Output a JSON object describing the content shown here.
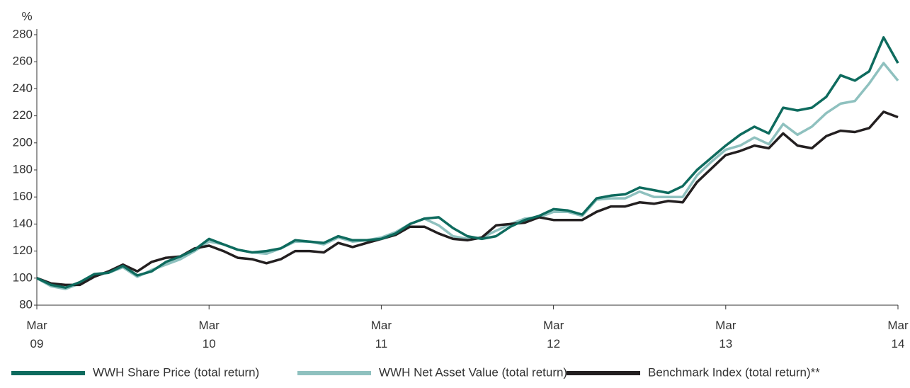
{
  "chart_data": {
    "type": "line",
    "ylabel": "%",
    "categories": [
      "Mar 09",
      null,
      null,
      null,
      null,
      null,
      null,
      null,
      null,
      null,
      null,
      null,
      "Mar 10",
      null,
      null,
      null,
      null,
      null,
      null,
      null,
      null,
      null,
      null,
      null,
      "Mar 11",
      null,
      null,
      null,
      null,
      null,
      null,
      null,
      null,
      null,
      null,
      null,
      "Mar 12",
      null,
      null,
      null,
      null,
      null,
      null,
      null,
      null,
      null,
      null,
      null,
      "Mar 13",
      null,
      null,
      null,
      null,
      null,
      null,
      null,
      null,
      null,
      null,
      null,
      "Mar 14"
    ],
    "ylim": [
      80,
      280
    ],
    "yticks": [
      80,
      100,
      120,
      140,
      160,
      180,
      200,
      220,
      240,
      260,
      280
    ],
    "grid": false,
    "legend": "bottom",
    "series": [
      {
        "name": "WWH Share Price (total return)",
        "color": "#0e6b5e",
        "values": [
          100,
          95,
          93,
          97,
          103,
          104,
          109,
          102,
          105,
          112,
          116,
          121,
          129,
          125,
          121,
          119,
          120,
          122,
          128,
          127,
          126,
          131,
          128,
          128,
          129,
          133,
          140,
          144,
          145,
          137,
          131,
          129,
          131,
          138,
          143,
          146,
          151,
          150,
          147,
          159,
          161,
          162,
          167,
          165,
          163,
          168,
          180,
          189,
          198,
          206,
          212,
          207,
          226,
          224,
          226,
          234,
          250,
          246,
          253,
          278,
          259
        ]
      },
      {
        "name": "WWH Net Asset Value (total return)",
        "color": "#8fc1bf",
        "values": [
          100,
          94,
          92,
          96,
          102,
          104,
          108,
          101,
          106,
          110,
          114,
          120,
          127,
          125,
          121,
          119,
          118,
          122,
          127,
          127,
          125,
          130,
          127,
          128,
          130,
          134,
          140,
          144,
          139,
          131,
          129,
          130,
          135,
          140,
          144,
          145,
          149,
          149,
          146,
          158,
          159,
          159,
          164,
          160,
          160,
          160,
          176,
          186,
          195,
          198,
          204,
          199,
          214,
          206,
          212,
          222,
          229,
          231,
          244,
          259,
          246
        ]
      },
      {
        "name": "Benchmark Index (total return)**",
        "color": "#231f20",
        "values": [
          100,
          96,
          95,
          95,
          101,
          105,
          110,
          105,
          112,
          115,
          116,
          122,
          124,
          120,
          115,
          114,
          111,
          114,
          120,
          120,
          119,
          126,
          123,
          126,
          129,
          132,
          138,
          138,
          133,
          129,
          128,
          130,
          139,
          140,
          141,
          145,
          143,
          143,
          143,
          149,
          153,
          153,
          156,
          155,
          157,
          156,
          171,
          181,
          191,
          194,
          198,
          196,
          207,
          198,
          196,
          205,
          209,
          208,
          211,
          223,
          219
        ]
      }
    ]
  }
}
